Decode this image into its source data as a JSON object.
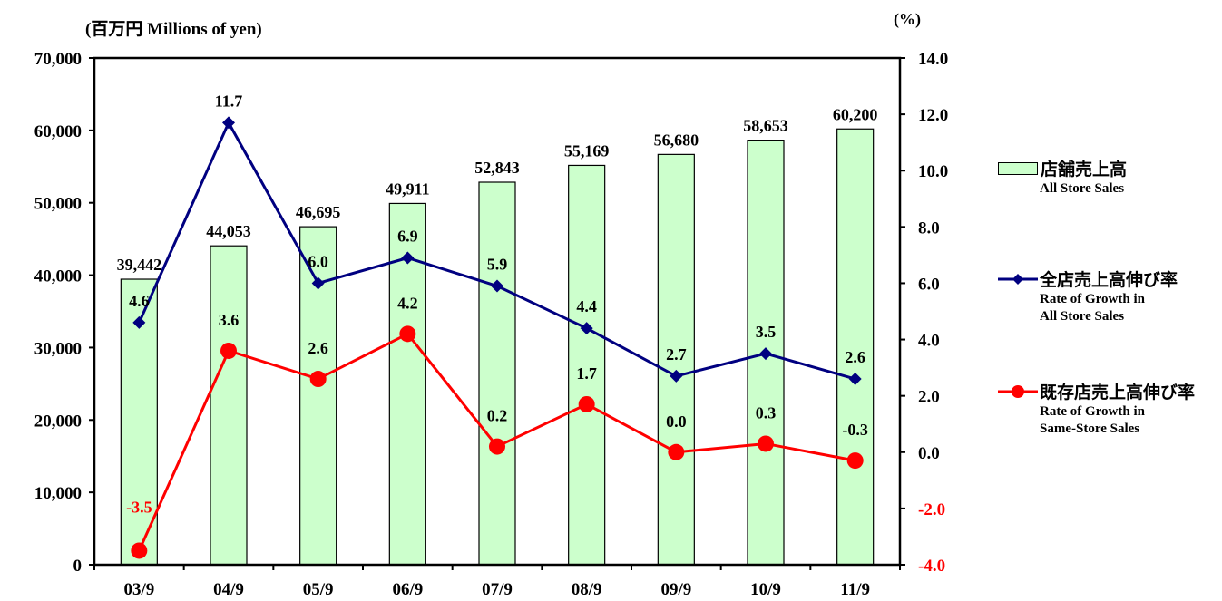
{
  "chart_data": {
    "type": "bar+line",
    "left_axis_title": "(百万円  Millions of yen)",
    "right_axis_title": "(%)",
    "categories": [
      "03/9",
      "04/9",
      "05/9",
      "06/9",
      "07/9",
      "08/9",
      "09/9",
      "10/9",
      "11/9"
    ],
    "left_ylim": [
      0,
      70000
    ],
    "left_ticks": [
      "0",
      "10,000",
      "20,000",
      "30,000",
      "40,000",
      "50,000",
      "60,000",
      "70,000"
    ],
    "right_ylim": [
      -4.0,
      14.0
    ],
    "right_ticks": [
      "-4.0",
      "-2.0",
      "0.0",
      "2.0",
      "4.0",
      "6.0",
      "8.0",
      "10.0",
      "12.0",
      "14.0"
    ],
    "bars": {
      "name_ja": "店舗売上高",
      "name_en": "All Store Sales",
      "values": [
        39442,
        44053,
        46695,
        49911,
        52843,
        55169,
        56680,
        58653,
        60200
      ],
      "labels": [
        "39,442",
        "44,053",
        "46,695",
        "49,911",
        "52,843",
        "55,169",
        "56,680",
        "58,653",
        "60,200"
      ],
      "color": "#ccffcc"
    },
    "lines": [
      {
        "name_ja": "全店売上高伸び率",
        "name_en": "Rate of Growth in All Store Sales",
        "values": [
          4.6,
          11.7,
          6.0,
          6.9,
          5.9,
          4.4,
          2.7,
          3.5,
          2.6
        ],
        "labels": [
          "4.6",
          "11.7",
          "6.0",
          "6.9",
          "5.9",
          "4.4",
          "2.7",
          "3.5",
          "2.6"
        ],
        "color": "#000080",
        "marker": "diamond"
      },
      {
        "name_ja": "既存店売上高伸び率",
        "name_en": "Rate of Growth in Same-Store Sales",
        "values": [
          -3.5,
          3.6,
          2.6,
          4.2,
          0.2,
          1.7,
          0.0,
          0.3,
          -0.3
        ],
        "labels": [
          "-3.5",
          "3.6",
          "2.6",
          "4.2",
          "0.2",
          "1.7",
          "0.0",
          "0.3",
          "-0.3"
        ],
        "color": "#ff0000",
        "marker": "circle"
      }
    ]
  },
  "legend": {
    "items": [
      {
        "name": "店舗売上高",
        "desc": [
          "All Store Sales"
        ]
      },
      {
        "name": "全店売上高伸び率",
        "desc": [
          "Rate of Growth in",
          "All Store Sales"
        ]
      },
      {
        "name": "既存店売上高伸び率",
        "desc": [
          "Rate of Growth in",
          "Same-Store Sales"
        ]
      }
    ]
  }
}
